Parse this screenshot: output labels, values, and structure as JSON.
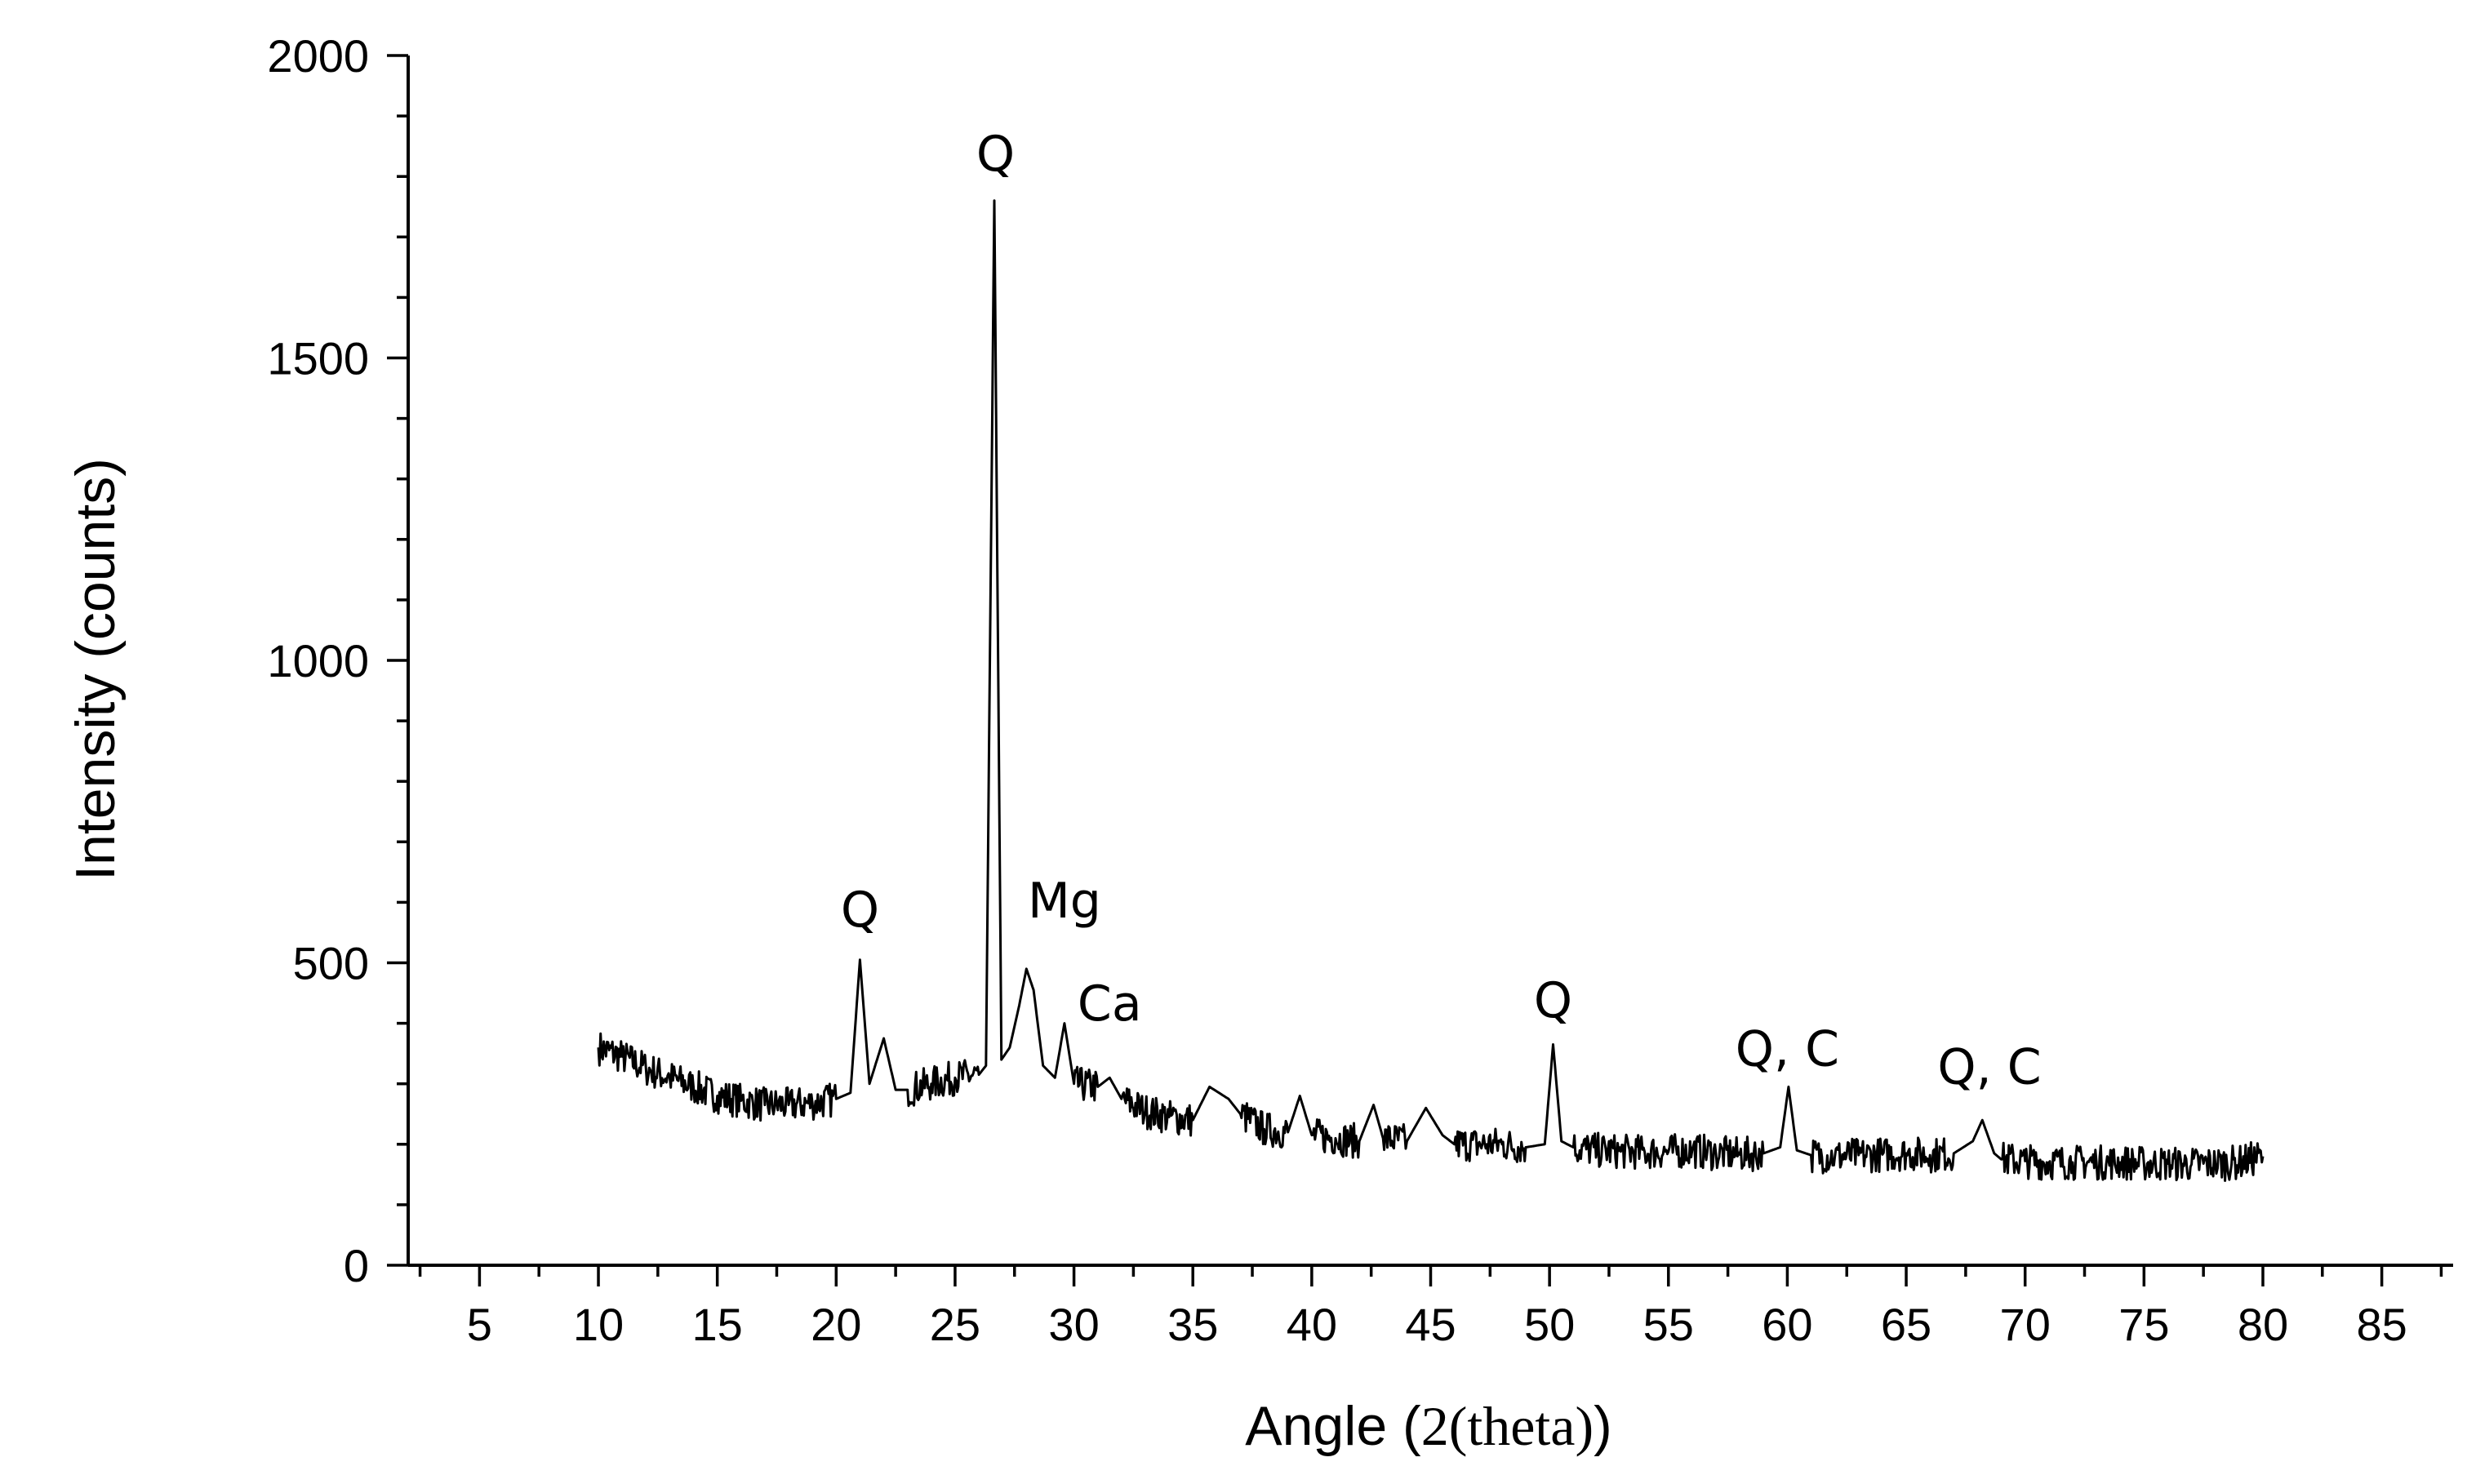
{
  "chart_data": {
    "type": "line",
    "title": "",
    "xlabel_prefix": "Angle (",
    "xlabel_symbol": "2(theta)",
    "xlabel_suffix": ")",
    "ylabel": "Intensity (counts)",
    "xlim": [
      2,
      88
    ],
    "ylim": [
      0,
      2000
    ],
    "x_ticks": [
      5,
      10,
      15,
      20,
      25,
      30,
      35,
      40,
      45,
      50,
      55,
      60,
      65,
      70,
      75,
      80,
      85
    ],
    "y_ticks": [
      0,
      500,
      1000,
      1500,
      2000
    ],
    "grid": false,
    "legend": "none",
    "line_color": "#000000",
    "series": [
      {
        "x": [
          10,
          11,
          12,
          13,
          14,
          15,
          16,
          17,
          18,
          19,
          20,
          20.6,
          21.0,
          21.4,
          22.0,
          22.5,
          23,
          24,
          25,
          26,
          26.3,
          26.65,
          26.95,
          27.3,
          27.7,
          28.0,
          28.3,
          28.7,
          29.2,
          29.6,
          30.0,
          31,
          31.5,
          32,
          33,
          34,
          35,
          35.7,
          36.5,
          37,
          38,
          39,
          39.5,
          40,
          41,
          42,
          42.6,
          43,
          44,
          44.8,
          45.5,
          46,
          47,
          48,
          49,
          49.8,
          50.15,
          50.5,
          51,
          52,
          53,
          54,
          55,
          56,
          57,
          58,
          59,
          59.7,
          60.05,
          60.4,
          61,
          62,
          63,
          64,
          65,
          66,
          67,
          67.8,
          68.2,
          68.7,
          69,
          70,
          71,
          72,
          73,
          74,
          75,
          76,
          77,
          78,
          79,
          80
        ],
        "y": [
          360,
          345,
          325,
          310,
          295,
          280,
          272,
          265,
          265,
          268,
          275,
          285,
          505,
          300,
          375,
          290,
          290,
          300,
          310,
          315,
          330,
          1760,
          340,
          360,
          430,
          490,
          455,
          330,
          310,
          400,
          300,
          295,
          310,
          275,
          255,
          245,
          240,
          295,
          275,
          250,
          225,
          220,
          280,
          215,
          210,
          205,
          265,
          210,
          205,
          260,
          215,
          200,
          200,
          200,
          195,
          200,
          365,
          205,
          195,
          190,
          188,
          187,
          188,
          190,
          185,
          183,
          185,
          195,
          295,
          190,
          182,
          180,
          182,
          183,
          185,
          182,
          185,
          205,
          240,
          185,
          175,
          172,
          170,
          170,
          170,
          170,
          168,
          168,
          167,
          168,
          170,
          180
        ]
      }
    ],
    "annotations": [
      {
        "text": "Q",
        "x": 21.0,
        "y": 560
      },
      {
        "text": "Q",
        "x": 26.7,
        "y": 1810
      },
      {
        "text": "Mg",
        "x": 29.6,
        "y": 575
      },
      {
        "text": "Ca",
        "x": 31.5,
        "y": 405
      },
      {
        "text": "Q",
        "x": 50.15,
        "y": 410
      },
      {
        "text": "Q, C",
        "x": 60.0,
        "y": 330
      },
      {
        "text": "Q, C",
        "x": 68.5,
        "y": 300
      }
    ]
  }
}
